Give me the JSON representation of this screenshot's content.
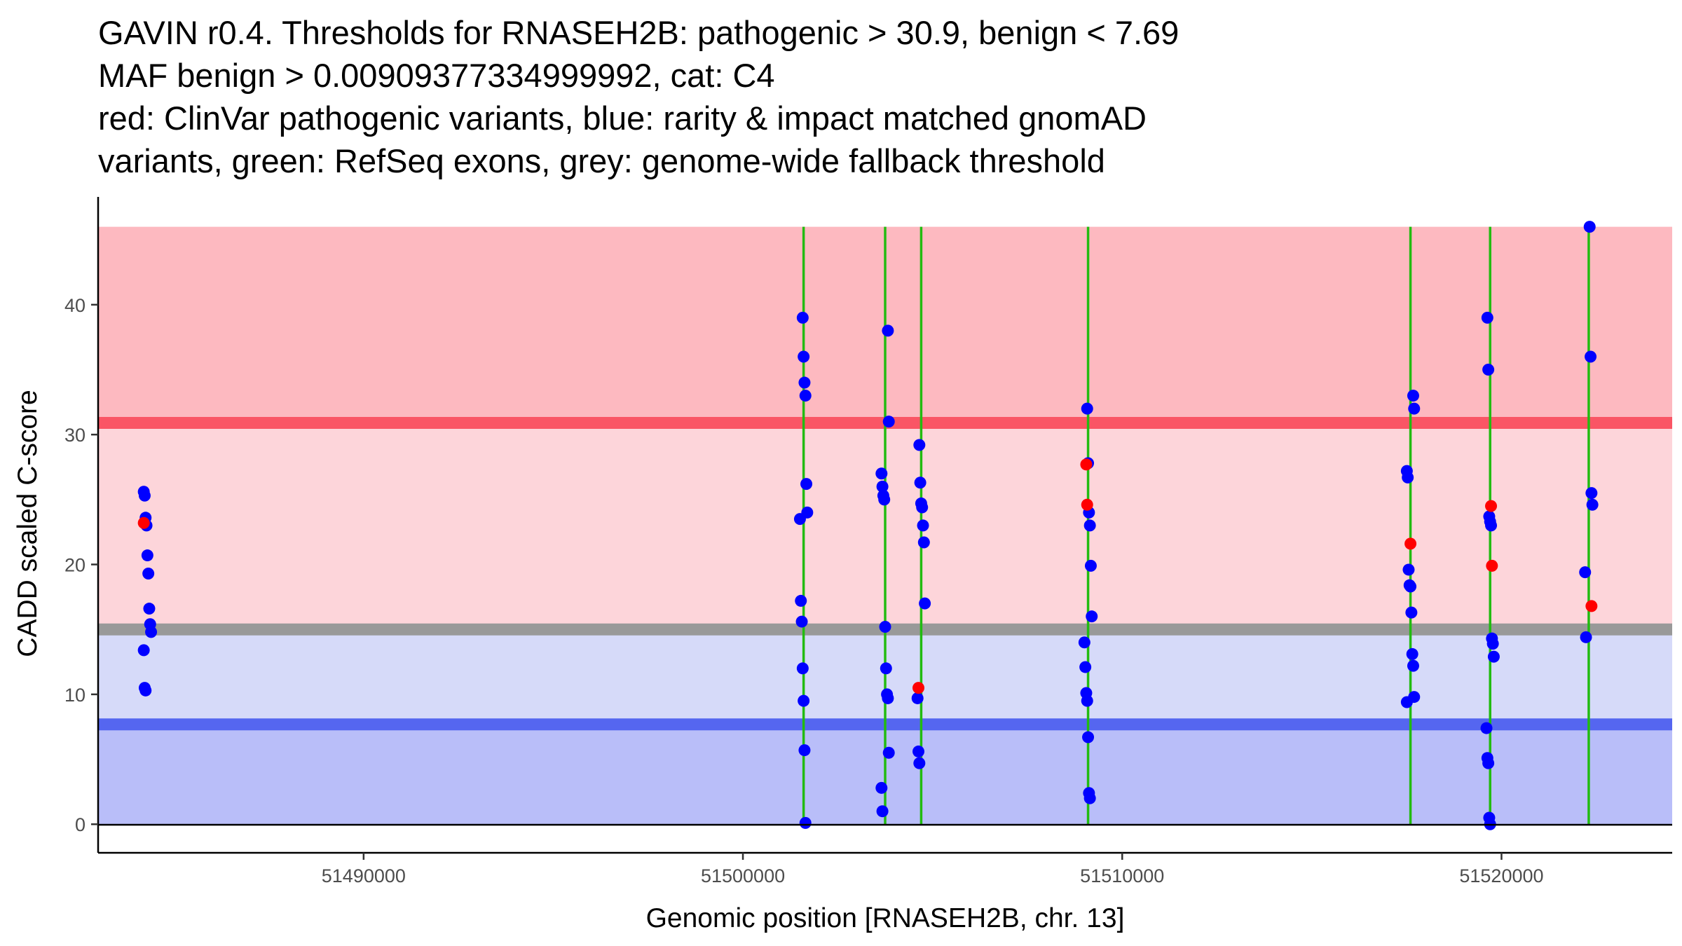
{
  "chart_data": {
    "type": "scatter",
    "title_lines": [
      "GAVIN r0.4. Thresholds for RNASEH2B: pathogenic > 30.9, benign < 7.69",
      "MAF benign > 0.00909377334999992, cat: C4",
      "red: ClinVar pathogenic variants, blue: rarity & impact matched gnomAD",
      "variants, green: RefSeq exons, grey: genome-wide fallback threshold"
    ],
    "xlabel": "Genomic position [RNASEH2B, chr. 13]",
    "ylabel": "CADD scaled C-score",
    "xlim": [
      51483000,
      51524500
    ],
    "ylim": [
      -2.2,
      48.3
    ],
    "xticks": [
      51490000,
      51500000,
      51510000,
      51520000
    ],
    "yticks": [
      0,
      10,
      20,
      30,
      40
    ],
    "thresholds": {
      "pathogenic": 30.9,
      "benign": 7.69,
      "fallback": 15.0,
      "band_top": 46.0,
      "band_bottom": 0.0
    },
    "colors": {
      "pathogenic_zone": "#fdb9c0",
      "intermediate_zone": "#fdd5da",
      "lower_zone": "#d6daf9",
      "benign_zone": "#b9bef9",
      "pathogenic_line": "#fa5565",
      "benign_line": "#5566f0",
      "fallback_line": "#999999",
      "exon": "#22bb11",
      "clinvar": "#ff0000",
      "gnomad": "#0000ff"
    },
    "exons": [
      51501600,
      51503750,
      51504700,
      51509100,
      51517600,
      51519700,
      51522300
    ],
    "series": [
      {
        "name": "gnomAD",
        "points": [
          [
            51484300,
            25.6
          ],
          [
            51484300,
            25.3
          ],
          [
            51484300,
            23.6
          ],
          [
            51484300,
            23.0
          ],
          [
            51484300,
            20.7
          ],
          [
            51484300,
            19.3
          ],
          [
            51484300,
            16.6
          ],
          [
            51484300,
            15.4
          ],
          [
            51484300,
            14.8
          ],
          [
            51484300,
            13.4
          ],
          [
            51484300,
            10.5
          ],
          [
            51484300,
            10.3
          ],
          [
            51501600,
            39.0
          ],
          [
            51501600,
            36.0
          ],
          [
            51501600,
            34.0
          ],
          [
            51501600,
            33.0
          ],
          [
            51501600,
            26.2
          ],
          [
            51501600,
            24.0
          ],
          [
            51501600,
            23.5
          ],
          [
            51501600,
            17.2
          ],
          [
            51501600,
            15.6
          ],
          [
            51501600,
            12.0
          ],
          [
            51501600,
            9.5
          ],
          [
            51501600,
            5.7
          ],
          [
            51501600,
            0.1
          ],
          [
            51503750,
            38.0
          ],
          [
            51503750,
            31.0
          ],
          [
            51503750,
            27.0
          ],
          [
            51503750,
            26.0
          ],
          [
            51503750,
            25.3
          ],
          [
            51503750,
            25.0
          ],
          [
            51503750,
            15.2
          ],
          [
            51503750,
            12.0
          ],
          [
            51503750,
            10.0
          ],
          [
            51503750,
            9.7
          ],
          [
            51503750,
            5.5
          ],
          [
            51503750,
            2.8
          ],
          [
            51503750,
            1.0
          ],
          [
            51504700,
            29.2
          ],
          [
            51504700,
            26.3
          ],
          [
            51504700,
            24.7
          ],
          [
            51504700,
            24.4
          ],
          [
            51504700,
            23.0
          ],
          [
            51504700,
            21.7
          ],
          [
            51504700,
            17.0
          ],
          [
            51504700,
            9.7
          ],
          [
            51504700,
            5.6
          ],
          [
            51504700,
            4.7
          ],
          [
            51509100,
            32.0
          ],
          [
            51509100,
            27.8
          ],
          [
            51509100,
            24.0
          ],
          [
            51509100,
            23.0
          ],
          [
            51509100,
            19.9
          ],
          [
            51509100,
            16.0
          ],
          [
            51509100,
            14.0
          ],
          [
            51509100,
            12.1
          ],
          [
            51509100,
            10.1
          ],
          [
            51509100,
            9.5
          ],
          [
            51509100,
            6.7
          ],
          [
            51509100,
            2.4
          ],
          [
            51509100,
            2.0
          ],
          [
            51517600,
            33.0
          ],
          [
            51517600,
            32.0
          ],
          [
            51517600,
            27.2
          ],
          [
            51517600,
            26.7
          ],
          [
            51517600,
            19.6
          ],
          [
            51517600,
            18.4
          ],
          [
            51517600,
            18.3
          ],
          [
            51517600,
            16.3
          ],
          [
            51517600,
            13.1
          ],
          [
            51517600,
            12.2
          ],
          [
            51517600,
            9.8
          ],
          [
            51517600,
            9.4
          ],
          [
            51519700,
            39.0
          ],
          [
            51519700,
            35.0
          ],
          [
            51519700,
            23.7
          ],
          [
            51519700,
            23.3
          ],
          [
            51519700,
            23.0
          ],
          [
            51519700,
            14.3
          ],
          [
            51519700,
            13.9
          ],
          [
            51519700,
            12.9
          ],
          [
            51519700,
            7.4
          ],
          [
            51519700,
            5.1
          ],
          [
            51519700,
            4.7
          ],
          [
            51519700,
            0.5
          ],
          [
            51519700,
            0.0
          ],
          [
            51522300,
            46.0
          ],
          [
            51522300,
            36.0
          ],
          [
            51522300,
            25.5
          ],
          [
            51522300,
            24.6
          ],
          [
            51522300,
            19.4
          ],
          [
            51522300,
            14.4
          ]
        ]
      },
      {
        "name": "ClinVar pathogenic",
        "points": [
          [
            51484300,
            23.2
          ],
          [
            51504700,
            10.5
          ],
          [
            51509100,
            27.7
          ],
          [
            51509100,
            24.6
          ],
          [
            51517600,
            21.6
          ],
          [
            51519700,
            24.5
          ],
          [
            51519700,
            19.9
          ],
          [
            51522300,
            16.8
          ]
        ]
      }
    ]
  }
}
